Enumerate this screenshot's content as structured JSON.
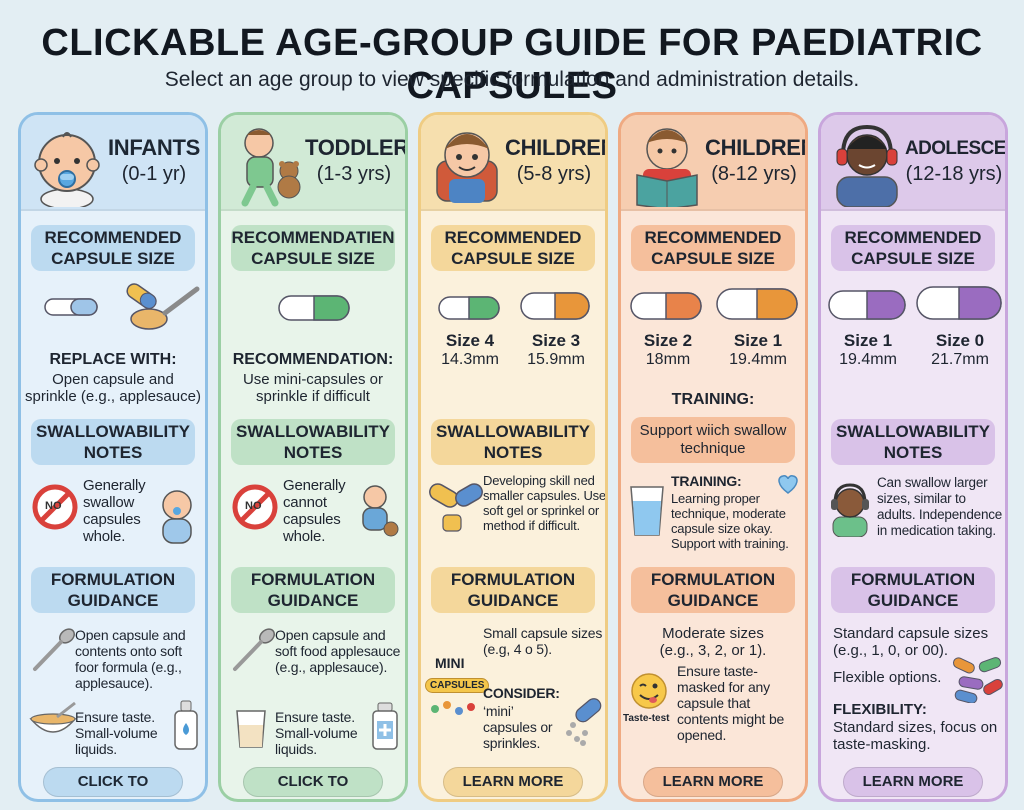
{
  "page": {
    "title": "CLICKABLE AGE-GROUP GUIDE FOR PAEDIATRIC CAPSULES",
    "subtitle": "Select an age group to view specific formulation and administration details."
  },
  "colors": {
    "infants": "#4a9ad6",
    "toddlers": "#5cb574",
    "children58": "#e5a93a",
    "children812": "#e8834a",
    "adolescents": "#9a6cc0"
  },
  "cards": {
    "infants": {
      "name": "INFANTS",
      "age": "(0-1 yr)",
      "size_header": "RECOMMENDED CAPSULE SIZE",
      "replace_title": "REPLACE WITH:",
      "replace_text": "Open capsule and sprinkle (e.g., applesauce)",
      "swallow_header": "SWALLOWABILITY NOTES",
      "swallow_text": "Generally swallow capsules whole.",
      "no_badge": "NO",
      "formulation_header": "FORMULATION GUIDANCE",
      "formulation_text": "Open capsule and contents onto soft foor formula (e.g., applesauce).",
      "formulation_text2": "Ensure taste. Small-volume liquids.",
      "cta": "CLICK TO EXPLORE"
    },
    "toddlers": {
      "name": "TODDLERS",
      "age": "(1-3 yrs)",
      "size_header": "RECOMMENDATIEN CAPSULE SIZE",
      "rec_title": "RECOMMENDATION:",
      "rec_text": "Use mini-capsules or sprinkle if difficult",
      "swallow_header": "SWALLOWABILITY NOTES",
      "swallow_text": "Generally cannot capsules whole.",
      "no_badge": "NO",
      "formulation_header": "FORMULATION GUIDANCE",
      "formulation_text": "Open capsule and soft food applesauce (e.g., applesauce).",
      "formulation_text2": "Ensure taste. Small-volume liquids.",
      "cta": "CLICK TO EXPLORE"
    },
    "children58": {
      "name": "CHILDREN",
      "age": "(5-8 yrs)",
      "size_header": "RECOMMENDED CAPSULE SIZE",
      "sizes": [
        {
          "label": "Size 4",
          "mm": "14.3mm"
        },
        {
          "label": "Size 3",
          "mm": "15.9mm"
        }
      ],
      "swallow_header": "SWALLOWABILITY NOTES",
      "swallow_text": "Developing skill ned smaller capsules. Use soft gel or sprinkel or method if difficult.",
      "formulation_header": "FORMULATION GUIDANCE",
      "formulation_text": "Small capsule sizes (e.g, 4 o 5).",
      "mini_label": "MINI",
      "capsules_badge": "CAPSULES",
      "consider_title": "CONSIDER:",
      "consider_text": "‘mini’ capsules or sprinkles.",
      "cta": "LEARN MORE"
    },
    "children812": {
      "name": "CHILDREN",
      "age": "(8-12 yrs)",
      "size_header": "RECOMMENDED CAPSULE SIZE",
      "sizes": [
        {
          "label": "Size 2",
          "mm": "18mm"
        },
        {
          "label": "Size 1",
          "mm": "19.4mm"
        }
      ],
      "training_heading": "TRAINING:",
      "training_header": "Support wiich swallow technique",
      "training_title": "TRAINING:",
      "training_text": "Learning proper technique, moderate capsule size okay. Support with training.",
      "formulation_header": "FORMULATION GUIDANCE",
      "formulation_text": "Moderate sizes (e.g., 3, 2, or 1).",
      "formulation_text2": "Ensure taste-masked for any capsule that contents might be opened.",
      "taste_badge": "Taste-test",
      "cta": "LEARN MORE"
    },
    "adolescents": {
      "name": "ADOLESCENTS",
      "age": "(12-18 yrs)",
      "size_header": "RECOMMENDED CAPSULE SIZE",
      "sizes": [
        {
          "label": "Size 1",
          "mm": "19.4mm"
        },
        {
          "label": "Size 0",
          "mm": "21.7mm"
        }
      ],
      "swallow_header": "SWALLOWABILITY NOTES",
      "swallow_text": "Can swallow larger sizes, similar to adults. Independence in medication taking.",
      "formulation_header": "FORMULATION GUIDANCE",
      "formulation_text": "Standard capsule sizes (e.g., 1, 0, or 00).",
      "formulation_text2": "Flexible options.",
      "flex_title": "FLEXIBILITY:",
      "flex_text": "Standard sizes, focus on taste-masking.",
      "cta": "LEARN MORE"
    }
  }
}
